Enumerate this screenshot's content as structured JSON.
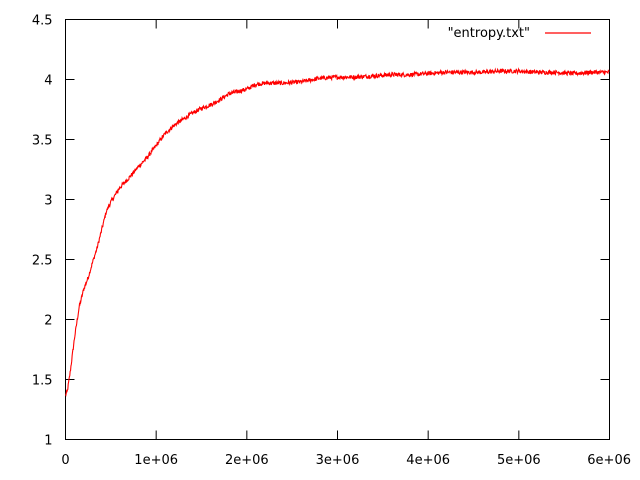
{
  "chart_data": {
    "type": "line",
    "title": "",
    "xlabel": "",
    "ylabel": "",
    "xlim": [
      0,
      6000000
    ],
    "ylim": [
      1,
      4.5
    ],
    "grid": false,
    "legend_position": "top-right",
    "x_ticks": [
      0,
      1000000,
      2000000,
      3000000,
      4000000,
      5000000,
      6000000
    ],
    "x_tick_labels": [
      "0",
      "1e+06",
      "2e+06",
      "3e+06",
      "4e+06",
      "5e+06",
      "6e+06"
    ],
    "y_ticks": [
      1,
      1.5,
      2,
      2.5,
      3,
      3.5,
      4,
      4.5
    ],
    "y_tick_labels": [
      "1",
      "1.5",
      "2",
      "2.5",
      "3",
      "3.5",
      "4",
      "4.5"
    ],
    "series": [
      {
        "name": "\"entropy.txt\"",
        "color": "#ff0000",
        "x": [
          0,
          20000,
          50000,
          100000,
          150000,
          200000,
          250000,
          300000,
          350000,
          400000,
          450000,
          500000,
          600000,
          700000,
          800000,
          900000,
          1000000,
          1100000,
          1200000,
          1300000,
          1400000,
          1500000,
          1600000,
          1700000,
          1800000,
          1900000,
          2000000,
          2100000,
          2200000,
          2400000,
          2600000,
          2800000,
          3000000,
          3200000,
          3400000,
          3600000,
          3800000,
          4000000,
          4200000,
          4400000,
          4600000,
          4800000,
          5000000,
          5200000,
          5400000,
          5600000,
          5800000,
          6000000
        ],
        "values": [
          1.37,
          1.4,
          1.55,
          1.85,
          2.1,
          2.25,
          2.35,
          2.48,
          2.6,
          2.75,
          2.9,
          2.98,
          3.1,
          3.18,
          3.27,
          3.35,
          3.45,
          3.55,
          3.62,
          3.67,
          3.72,
          3.76,
          3.79,
          3.83,
          3.88,
          3.9,
          3.92,
          3.96,
          3.97,
          3.97,
          3.98,
          4.01,
          4.02,
          4.02,
          4.03,
          4.04,
          4.04,
          4.05,
          4.06,
          4.06,
          4.06,
          4.07,
          4.07,
          4.06,
          4.06,
          4.05,
          4.06,
          4.06
        ]
      }
    ]
  }
}
